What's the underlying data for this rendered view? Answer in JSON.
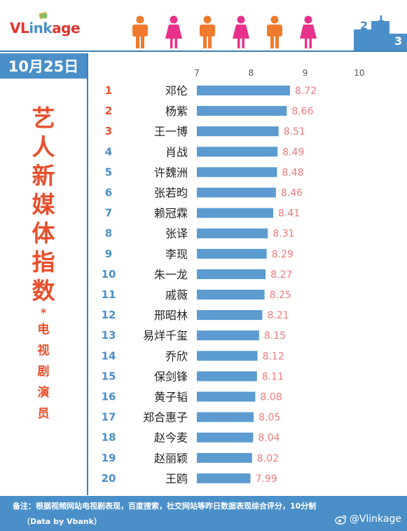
{
  "brand": {
    "logo_part1": "VL",
    "logo_part2": "ink",
    "logo_part3": "age",
    "podium_labels": [
      "2",
      "1",
      "3"
    ]
  },
  "date": "10月25日",
  "side_title": {
    "big_chars": [
      "艺",
      "人",
      "新",
      "媒",
      "体",
      "指",
      "数"
    ],
    "star": "*",
    "small_chars": [
      "电",
      "视",
      "剧",
      "演",
      "员"
    ]
  },
  "footer": {
    "note": "备注：根据视频网站电视剧表现，百度搜索，社交网站等昨日数据表现综合评分，10分制",
    "data_source": "（Data by Vbank）",
    "weibo": "@Vlinkage"
  },
  "colors": {
    "accent_blue": "#4a8fc8",
    "bar_blue": "#5b9bd0",
    "rank_orange": "#e94e2b",
    "value_pink": "#f07a7a",
    "person_orange": "#f07a2e",
    "person_pink": "#e8318a"
  },
  "chart_data": {
    "type": "bar",
    "orientation": "horizontal",
    "xlim": [
      7,
      10
    ],
    "xticks": [
      7,
      8,
      9,
      10
    ],
    "grid": false,
    "ranks": [
      1,
      2,
      3,
      4,
      5,
      6,
      7,
      8,
      9,
      10,
      11,
      12,
      13,
      14,
      15,
      16,
      17,
      18,
      19,
      20
    ],
    "categories": [
      "邓伦",
      "杨紫",
      "王一博",
      "肖战",
      "许魏洲",
      "张若昀",
      "赖冠霖",
      "张译",
      "李现",
      "朱一龙",
      "戚薇",
      "邢昭林",
      "易烊千玺",
      "乔欣",
      "保剑锋",
      "黄子韬",
      "郑合惠子",
      "赵今麦",
      "赵丽颖",
      "王鸥"
    ],
    "values": [
      8.72,
      8.66,
      8.51,
      8.49,
      8.48,
      8.46,
      8.41,
      8.31,
      8.29,
      8.27,
      8.25,
      8.21,
      8.15,
      8.12,
      8.11,
      8.08,
      8.05,
      8.04,
      8.02,
      7.99
    ],
    "value_labels": [
      "8.72",
      "8.66",
      "8.51",
      "8.49",
      "8.48",
      "8.46",
      "8.41",
      "8.31",
      "8.29",
      "8.27",
      "8.25",
      "8.21",
      "8.15",
      "8.12",
      "8.11",
      "8.08",
      "8.05",
      "8.04",
      "8.02",
      "7.99"
    ]
  }
}
